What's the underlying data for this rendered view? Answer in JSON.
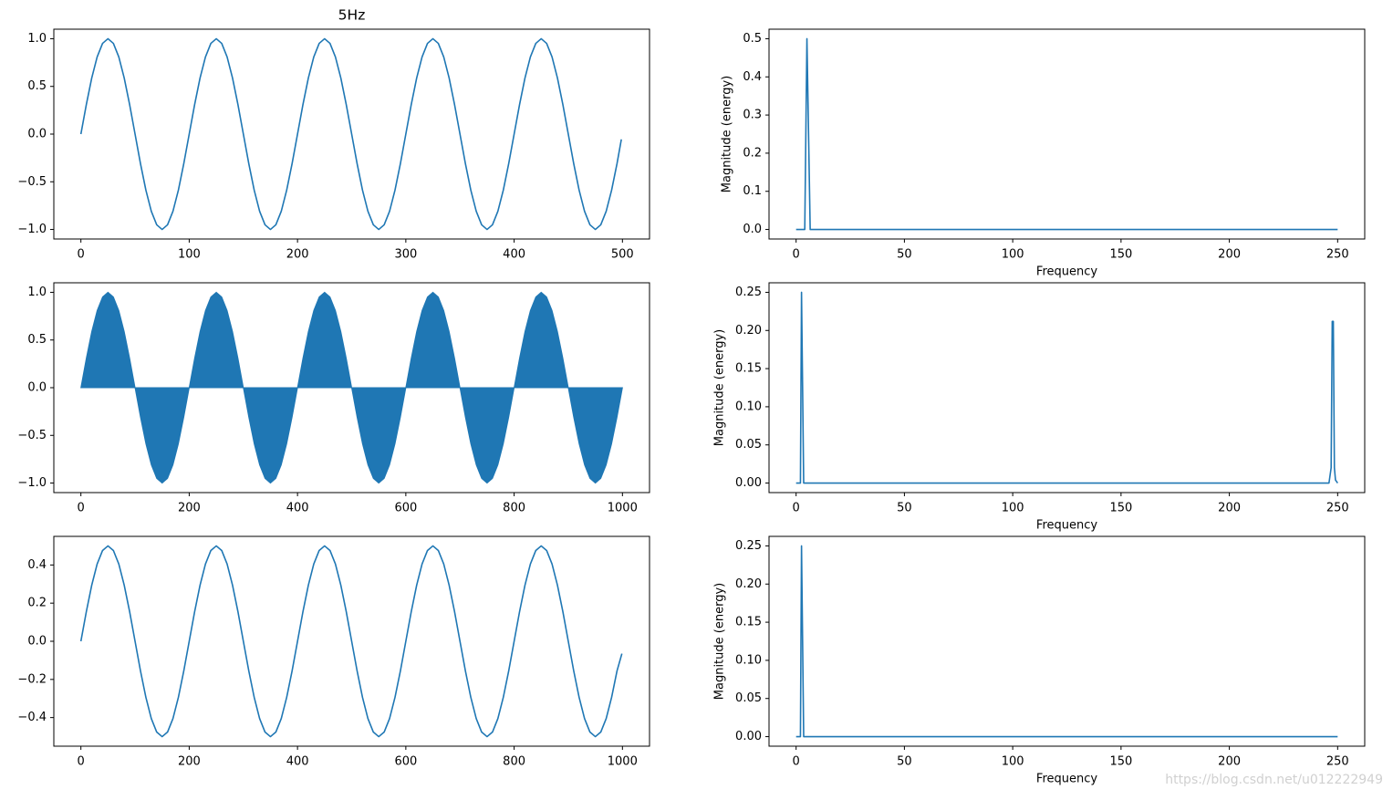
{
  "chart_data": [
    {
      "type": "line",
      "title": "5Hz",
      "x": [
        0,
        5,
        10,
        15,
        20,
        25,
        30,
        35,
        40,
        45,
        50,
        55,
        60,
        65,
        70,
        75,
        80,
        85,
        90,
        95,
        100,
        105,
        110,
        115,
        120,
        125,
        130,
        135,
        140,
        145,
        150,
        155,
        160,
        165,
        170,
        175,
        180,
        185,
        190,
        195,
        200,
        205,
        210,
        215,
        220,
        225,
        230,
        235,
        240,
        245,
        250,
        255,
        260,
        265,
        270,
        275,
        280,
        285,
        290,
        295,
        300,
        305,
        310,
        315,
        320,
        325,
        330,
        335,
        340,
        345,
        350,
        355,
        360,
        365,
        370,
        375,
        380,
        385,
        390,
        395,
        400,
        405,
        410,
        415,
        420,
        425,
        430,
        435,
        440,
        445,
        450,
        455,
        460,
        465,
        470,
        475,
        480,
        485,
        490,
        495,
        499
      ],
      "values": [
        0,
        0.309,
        0.588,
        0.809,
        0.951,
        1,
        0.951,
        0.809,
        0.588,
        0.309,
        0,
        -0.309,
        -0.588,
        -0.809,
        -0.951,
        -1,
        -0.951,
        -0.809,
        -0.588,
        -0.309,
        0,
        0.309,
        0.588,
        0.809,
        0.951,
        1,
        0.951,
        0.809,
        0.588,
        0.309,
        0,
        -0.309,
        -0.588,
        -0.809,
        -0.951,
        -1,
        -0.951,
        -0.809,
        -0.588,
        -0.309,
        0,
        0.309,
        0.588,
        0.809,
        0.951,
        1,
        0.951,
        0.809,
        0.588,
        0.309,
        0,
        -0.309,
        -0.588,
        -0.809,
        -0.951,
        -1,
        -0.951,
        -0.809,
        -0.588,
        -0.309,
        0,
        0.309,
        0.588,
        0.809,
        0.951,
        1,
        0.951,
        0.809,
        0.588,
        0.309,
        0,
        -0.309,
        -0.588,
        -0.809,
        -0.951,
        -1,
        -0.951,
        -0.809,
        -0.588,
        -0.309,
        0,
        0.309,
        0.588,
        0.809,
        0.951,
        1,
        0.951,
        0.809,
        0.588,
        0.309,
        0,
        -0.309,
        -0.588,
        -0.809,
        -0.951,
        -1,
        -0.951,
        -0.809,
        -0.588,
        -0.309,
        -0.055
      ],
      "color": "#1f77b4",
      "xlim": [
        -25,
        525
      ],
      "xticks": [
        0,
        100,
        200,
        300,
        400,
        500
      ],
      "ylim": [
        -1.1,
        1.1
      ],
      "yticks": [
        {
          "value": -1,
          "label": "−1.0"
        },
        {
          "value": -0.5,
          "label": "−0.5"
        },
        {
          "value": 0,
          "label": "0.0"
        },
        0.5,
        {
          "value": 1,
          "label": "1.0"
        }
      ]
    },
    {
      "type": "line",
      "xlabel": "Frequency",
      "ylabel": "Magnitude (energy)",
      "x": [
        0,
        4,
        5,
        6.5,
        250
      ],
      "values": [
        0,
        0,
        0.5,
        0,
        0
      ],
      "color": "#1f77b4",
      "xlim": [
        -12.5,
        262.5
      ],
      "xticks": [
        0,
        50,
        100,
        150,
        200,
        250
      ],
      "ylim": [
        -0.025,
        0.525
      ],
      "yticks": [
        {
          "value": 0,
          "label": "0.0"
        },
        0.1,
        0.2,
        0.3,
        0.4,
        0.5
      ]
    },
    {
      "type": "area",
      "x": [
        0,
        10,
        20,
        30,
        40,
        50,
        60,
        70,
        80,
        90,
        100,
        110,
        120,
        130,
        140,
        150,
        160,
        170,
        180,
        190,
        200,
        210,
        220,
        230,
        240,
        250,
        260,
        270,
        280,
        290,
        300,
        310,
        320,
        330,
        340,
        350,
        360,
        370,
        380,
        390,
        400,
        410,
        420,
        430,
        440,
        450,
        460,
        470,
        480,
        490,
        500,
        510,
        520,
        530,
        540,
        550,
        560,
        570,
        580,
        590,
        600,
        610,
        620,
        630,
        640,
        650,
        660,
        670,
        680,
        690,
        700,
        710,
        720,
        730,
        740,
        750,
        760,
        770,
        780,
        790,
        800,
        810,
        820,
        830,
        840,
        850,
        860,
        870,
        880,
        890,
        900,
        910,
        920,
        930,
        940,
        950,
        960,
        970,
        980,
        990,
        1000
      ],
      "values": [
        0,
        0.309,
        0.588,
        0.809,
        0.951,
        1,
        0.951,
        0.809,
        0.588,
        0.309,
        0,
        -0.309,
        -0.588,
        -0.809,
        -0.951,
        -1,
        -0.951,
        -0.809,
        -0.588,
        -0.309,
        0,
        0.309,
        0.588,
        0.809,
        0.951,
        1,
        0.951,
        0.809,
        0.588,
        0.309,
        0,
        -0.309,
        -0.588,
        -0.809,
        -0.951,
        -1,
        -0.951,
        -0.809,
        -0.588,
        -0.309,
        0,
        0.309,
        0.588,
        0.809,
        0.951,
        1,
        0.951,
        0.809,
        0.588,
        0.309,
        0,
        -0.309,
        -0.588,
        -0.809,
        -0.951,
        -1,
        -0.951,
        -0.809,
        -0.588,
        -0.309,
        0,
        0.309,
        0.588,
        0.809,
        0.951,
        1,
        0.951,
        0.809,
        0.588,
        0.309,
        0,
        -0.309,
        -0.588,
        -0.809,
        -0.951,
        -1,
        -0.951,
        -0.809,
        -0.588,
        -0.309,
        0,
        0.309,
        0.588,
        0.809,
        0.951,
        1,
        0.951,
        0.809,
        0.588,
        0.309,
        0,
        -0.309,
        -0.588,
        -0.809,
        -0.951,
        -1,
        -0.951,
        -0.809,
        -0.588,
        -0.309,
        0
      ],
      "color": "#1f77b4",
      "xlim": [
        -50,
        1050
      ],
      "xticks": [
        0,
        200,
        400,
        600,
        800,
        1000
      ],
      "ylim": [
        -1.1,
        1.1
      ],
      "yticks": [
        {
          "value": -1,
          "label": "−1.0"
        },
        {
          "value": -0.5,
          "label": "−0.5"
        },
        {
          "value": 0,
          "label": "0.0"
        },
        0.5,
        {
          "value": 1,
          "label": "1.0"
        }
      ]
    },
    {
      "type": "line",
      "xlabel": "Frequency",
      "ylabel": "Magnitude (energy)",
      "x": [
        0,
        2,
        2.5,
        3.5,
        246,
        247,
        247.5,
        248,
        248.5,
        249,
        250
      ],
      "values": [
        0,
        0,
        0.25,
        0,
        0,
        0.02,
        0.212,
        0.212,
        0.02,
        0.004,
        0
      ],
      "color": "#1f77b4",
      "xlim": [
        -12.5,
        262.5
      ],
      "xticks": [
        0,
        50,
        100,
        150,
        200,
        250
      ],
      "ylim": [
        -0.0125,
        0.2625
      ],
      "yticks": [
        {
          "value": 0,
          "label": "0.00"
        },
        0.05,
        {
          "value": 0.1,
          "label": "0.10"
        },
        0.15,
        {
          "value": 0.2,
          "label": "0.20"
        },
        0.25
      ]
    },
    {
      "type": "line",
      "x": [
        0,
        10,
        20,
        30,
        40,
        50,
        60,
        70,
        80,
        90,
        100,
        110,
        120,
        130,
        140,
        150,
        160,
        170,
        180,
        190,
        200,
        210,
        220,
        230,
        240,
        250,
        260,
        270,
        280,
        290,
        300,
        310,
        320,
        330,
        340,
        350,
        360,
        370,
        380,
        390,
        400,
        410,
        420,
        430,
        440,
        450,
        460,
        470,
        480,
        490,
        500,
        510,
        520,
        530,
        540,
        550,
        560,
        570,
        580,
        590,
        600,
        610,
        620,
        630,
        640,
        650,
        660,
        670,
        680,
        690,
        700,
        710,
        720,
        730,
        740,
        750,
        760,
        770,
        780,
        790,
        800,
        810,
        820,
        830,
        840,
        850,
        860,
        870,
        880,
        890,
        900,
        910,
        920,
        930,
        940,
        950,
        960,
        970,
        980,
        990,
        999
      ],
      "values": [
        0,
        0.155,
        0.294,
        0.405,
        0.476,
        0.5,
        0.476,
        0.405,
        0.294,
        0.155,
        0,
        -0.155,
        -0.294,
        -0.405,
        -0.476,
        -0.5,
        -0.476,
        -0.405,
        -0.294,
        -0.155,
        0,
        0.155,
        0.294,
        0.405,
        0.476,
        0.5,
        0.476,
        0.405,
        0.294,
        0.155,
        0,
        -0.155,
        -0.294,
        -0.405,
        -0.476,
        -0.5,
        -0.476,
        -0.405,
        -0.294,
        -0.155,
        0,
        0.155,
        0.294,
        0.405,
        0.476,
        0.5,
        0.476,
        0.405,
        0.294,
        0.155,
        0,
        -0.155,
        -0.294,
        -0.405,
        -0.476,
        -0.5,
        -0.476,
        -0.405,
        -0.294,
        -0.155,
        0,
        0.155,
        0.294,
        0.405,
        0.476,
        0.5,
        0.476,
        0.405,
        0.294,
        0.155,
        0,
        -0.155,
        -0.294,
        -0.405,
        -0.476,
        -0.5,
        -0.476,
        -0.405,
        -0.294,
        -0.155,
        0,
        0.155,
        0.294,
        0.405,
        0.476,
        0.5,
        0.476,
        0.405,
        0.294,
        0.155,
        0,
        -0.155,
        -0.294,
        -0.405,
        -0.476,
        -0.5,
        -0.476,
        -0.405,
        -0.294,
        -0.155,
        -0.065
      ],
      "color": "#1f77b4",
      "xlim": [
        -50,
        1050
      ],
      "xticks": [
        0,
        200,
        400,
        600,
        800,
        1000
      ],
      "ylim": [
        -0.55,
        0.55
      ],
      "yticks": [
        {
          "value": -0.4,
          "label": "−0.4"
        },
        {
          "value": -0.2,
          "label": "−0.2"
        },
        {
          "value": 0,
          "label": "0.0"
        },
        0.2,
        0.4
      ]
    },
    {
      "type": "line",
      "xlabel": "Frequency",
      "ylabel": "Magnitude (energy)",
      "x": [
        0,
        2,
        2.5,
        3.5,
        250
      ],
      "values": [
        0,
        0,
        0.25,
        0,
        0
      ],
      "color": "#1f77b4",
      "xlim": [
        -12.5,
        262.5
      ],
      "xticks": [
        0,
        50,
        100,
        150,
        200,
        250
      ],
      "ylim": [
        -0.0125,
        0.2625
      ],
      "yticks": [
        {
          "value": 0,
          "label": "0.00"
        },
        0.05,
        {
          "value": 0.1,
          "label": "0.10"
        },
        0.15,
        {
          "value": 0.2,
          "label": "0.20"
        },
        0.25
      ]
    }
  ],
  "watermark": "https://blog.csdn.net/u012222949"
}
